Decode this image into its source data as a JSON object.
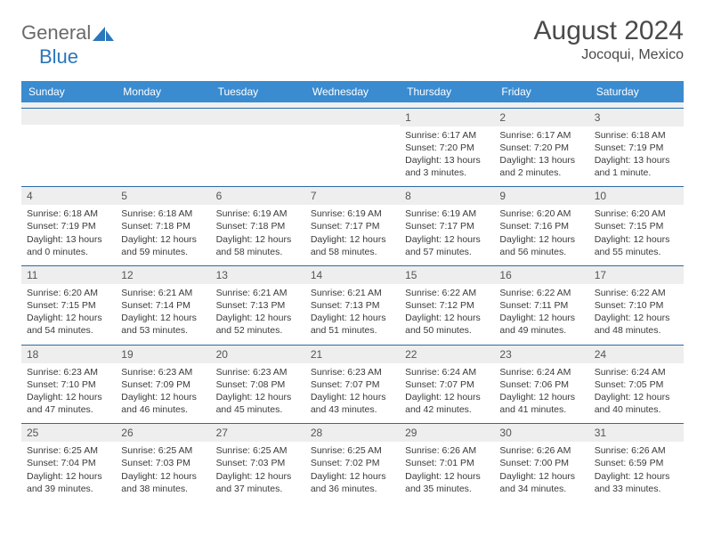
{
  "brand": {
    "word1": "General",
    "word2": "Blue"
  },
  "title": "August 2024",
  "location": "Jocoqui, Mexico",
  "colors": {
    "header_bg": "#3a8bd0",
    "header_text": "#ffffff",
    "row_border": "#2a6aa8",
    "band_bg": "#eeeeee",
    "logo_gray": "#6a6a6a",
    "logo_blue": "#2a77bb"
  },
  "day_headers": [
    "Sunday",
    "Monday",
    "Tuesday",
    "Wednesday",
    "Thursday",
    "Friday",
    "Saturday"
  ],
  "weeks": [
    [
      {
        "n": "",
        "sunrise": "",
        "sunset": "",
        "daylight": ""
      },
      {
        "n": "",
        "sunrise": "",
        "sunset": "",
        "daylight": ""
      },
      {
        "n": "",
        "sunrise": "",
        "sunset": "",
        "daylight": ""
      },
      {
        "n": "",
        "sunrise": "",
        "sunset": "",
        "daylight": ""
      },
      {
        "n": "1",
        "sunrise": "Sunrise: 6:17 AM",
        "sunset": "Sunset: 7:20 PM",
        "daylight": "Daylight: 13 hours and 3 minutes."
      },
      {
        "n": "2",
        "sunrise": "Sunrise: 6:17 AM",
        "sunset": "Sunset: 7:20 PM",
        "daylight": "Daylight: 13 hours and 2 minutes."
      },
      {
        "n": "3",
        "sunrise": "Sunrise: 6:18 AM",
        "sunset": "Sunset: 7:19 PM",
        "daylight": "Daylight: 13 hours and 1 minute."
      }
    ],
    [
      {
        "n": "4",
        "sunrise": "Sunrise: 6:18 AM",
        "sunset": "Sunset: 7:19 PM",
        "daylight": "Daylight: 13 hours and 0 minutes."
      },
      {
        "n": "5",
        "sunrise": "Sunrise: 6:18 AM",
        "sunset": "Sunset: 7:18 PM",
        "daylight": "Daylight: 12 hours and 59 minutes."
      },
      {
        "n": "6",
        "sunrise": "Sunrise: 6:19 AM",
        "sunset": "Sunset: 7:18 PM",
        "daylight": "Daylight: 12 hours and 58 minutes."
      },
      {
        "n": "7",
        "sunrise": "Sunrise: 6:19 AM",
        "sunset": "Sunset: 7:17 PM",
        "daylight": "Daylight: 12 hours and 58 minutes."
      },
      {
        "n": "8",
        "sunrise": "Sunrise: 6:19 AM",
        "sunset": "Sunset: 7:17 PM",
        "daylight": "Daylight: 12 hours and 57 minutes."
      },
      {
        "n": "9",
        "sunrise": "Sunrise: 6:20 AM",
        "sunset": "Sunset: 7:16 PM",
        "daylight": "Daylight: 12 hours and 56 minutes."
      },
      {
        "n": "10",
        "sunrise": "Sunrise: 6:20 AM",
        "sunset": "Sunset: 7:15 PM",
        "daylight": "Daylight: 12 hours and 55 minutes."
      }
    ],
    [
      {
        "n": "11",
        "sunrise": "Sunrise: 6:20 AM",
        "sunset": "Sunset: 7:15 PM",
        "daylight": "Daylight: 12 hours and 54 minutes."
      },
      {
        "n": "12",
        "sunrise": "Sunrise: 6:21 AM",
        "sunset": "Sunset: 7:14 PM",
        "daylight": "Daylight: 12 hours and 53 minutes."
      },
      {
        "n": "13",
        "sunrise": "Sunrise: 6:21 AM",
        "sunset": "Sunset: 7:13 PM",
        "daylight": "Daylight: 12 hours and 52 minutes."
      },
      {
        "n": "14",
        "sunrise": "Sunrise: 6:21 AM",
        "sunset": "Sunset: 7:13 PM",
        "daylight": "Daylight: 12 hours and 51 minutes."
      },
      {
        "n": "15",
        "sunrise": "Sunrise: 6:22 AM",
        "sunset": "Sunset: 7:12 PM",
        "daylight": "Daylight: 12 hours and 50 minutes."
      },
      {
        "n": "16",
        "sunrise": "Sunrise: 6:22 AM",
        "sunset": "Sunset: 7:11 PM",
        "daylight": "Daylight: 12 hours and 49 minutes."
      },
      {
        "n": "17",
        "sunrise": "Sunrise: 6:22 AM",
        "sunset": "Sunset: 7:10 PM",
        "daylight": "Daylight: 12 hours and 48 minutes."
      }
    ],
    [
      {
        "n": "18",
        "sunrise": "Sunrise: 6:23 AM",
        "sunset": "Sunset: 7:10 PM",
        "daylight": "Daylight: 12 hours and 47 minutes."
      },
      {
        "n": "19",
        "sunrise": "Sunrise: 6:23 AM",
        "sunset": "Sunset: 7:09 PM",
        "daylight": "Daylight: 12 hours and 46 minutes."
      },
      {
        "n": "20",
        "sunrise": "Sunrise: 6:23 AM",
        "sunset": "Sunset: 7:08 PM",
        "daylight": "Daylight: 12 hours and 45 minutes."
      },
      {
        "n": "21",
        "sunrise": "Sunrise: 6:23 AM",
        "sunset": "Sunset: 7:07 PM",
        "daylight": "Daylight: 12 hours and 43 minutes."
      },
      {
        "n": "22",
        "sunrise": "Sunrise: 6:24 AM",
        "sunset": "Sunset: 7:07 PM",
        "daylight": "Daylight: 12 hours and 42 minutes."
      },
      {
        "n": "23",
        "sunrise": "Sunrise: 6:24 AM",
        "sunset": "Sunset: 7:06 PM",
        "daylight": "Daylight: 12 hours and 41 minutes."
      },
      {
        "n": "24",
        "sunrise": "Sunrise: 6:24 AM",
        "sunset": "Sunset: 7:05 PM",
        "daylight": "Daylight: 12 hours and 40 minutes."
      }
    ],
    [
      {
        "n": "25",
        "sunrise": "Sunrise: 6:25 AM",
        "sunset": "Sunset: 7:04 PM",
        "daylight": "Daylight: 12 hours and 39 minutes."
      },
      {
        "n": "26",
        "sunrise": "Sunrise: 6:25 AM",
        "sunset": "Sunset: 7:03 PM",
        "daylight": "Daylight: 12 hours and 38 minutes."
      },
      {
        "n": "27",
        "sunrise": "Sunrise: 6:25 AM",
        "sunset": "Sunset: 7:03 PM",
        "daylight": "Daylight: 12 hours and 37 minutes."
      },
      {
        "n": "28",
        "sunrise": "Sunrise: 6:25 AM",
        "sunset": "Sunset: 7:02 PM",
        "daylight": "Daylight: 12 hours and 36 minutes."
      },
      {
        "n": "29",
        "sunrise": "Sunrise: 6:26 AM",
        "sunset": "Sunset: 7:01 PM",
        "daylight": "Daylight: 12 hours and 35 minutes."
      },
      {
        "n": "30",
        "sunrise": "Sunrise: 6:26 AM",
        "sunset": "Sunset: 7:00 PM",
        "daylight": "Daylight: 12 hours and 34 minutes."
      },
      {
        "n": "31",
        "sunrise": "Sunrise: 6:26 AM",
        "sunset": "Sunset: 6:59 PM",
        "daylight": "Daylight: 12 hours and 33 minutes."
      }
    ]
  ]
}
